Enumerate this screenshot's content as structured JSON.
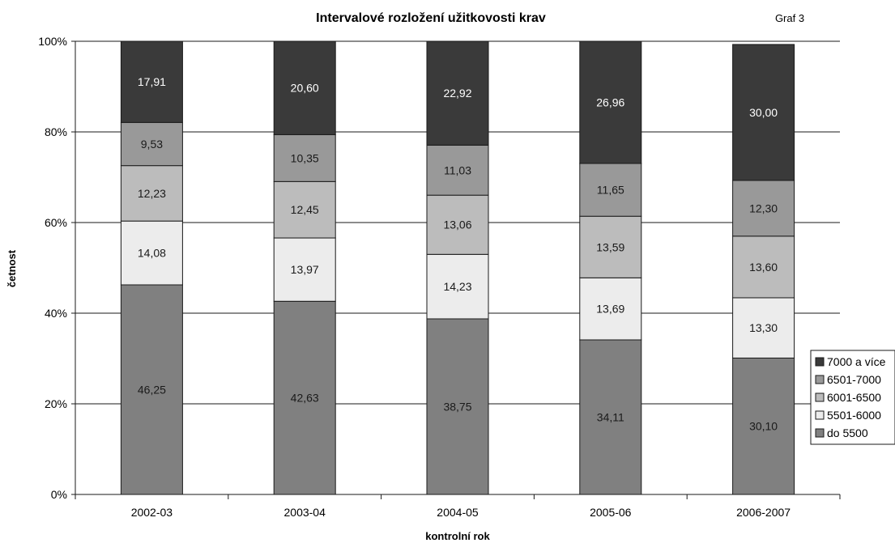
{
  "chart_data": {
    "type": "bar",
    "stacked": true,
    "title": "Intervalové rozložení užitkovosti krav",
    "note": "Graf 3",
    "xlabel": "kontrolní rok",
    "ylabel": "četnost",
    "categories": [
      "2002-03",
      "2003-04",
      "2004-05",
      "2005-06",
      "2006-2007"
    ],
    "series": [
      {
        "name": "do 5500",
        "color": "#808080",
        "label_color": "#1a1a1a",
        "values": [
          46.25,
          42.63,
          38.75,
          34.11,
          30.1
        ],
        "labels": [
          "46,25",
          "42,63",
          "38,75",
          "34,11",
          "30,10"
        ]
      },
      {
        "name": "5501-6000",
        "color": "#ececec",
        "label_color": "#1a1a1a",
        "values": [
          14.08,
          13.97,
          14.23,
          13.69,
          13.3
        ],
        "labels": [
          "14,08",
          "13,97",
          "14,23",
          "13,69",
          "13,30"
        ]
      },
      {
        "name": "6001-6500",
        "color": "#bcbcbc",
        "label_color": "#1a1a1a",
        "values": [
          12.23,
          12.45,
          13.06,
          13.59,
          13.6
        ],
        "labels": [
          "12,23",
          "12,45",
          "13,06",
          "13,59",
          "13,60"
        ]
      },
      {
        "name": "6501-7000",
        "color": "#999999",
        "label_color": "#1a1a1a",
        "values": [
          9.53,
          10.35,
          11.03,
          11.65,
          12.3
        ],
        "labels": [
          "9,53",
          "10,35",
          "11,03",
          "11,65",
          "12,30"
        ]
      },
      {
        "name": "7000 a více",
        "color": "#3a3a3a",
        "label_color": "#ffffff",
        "values": [
          17.91,
          20.6,
          22.92,
          26.96,
          30.0
        ],
        "labels": [
          "17,91",
          "20,60",
          "22,92",
          "26,96",
          "30,00"
        ]
      }
    ],
    "ylim": [
      0,
      100
    ],
    "yticks": [
      "0%",
      "20%",
      "40%",
      "60%",
      "80%",
      "100%"
    ],
    "grid": true,
    "legend": "right"
  }
}
